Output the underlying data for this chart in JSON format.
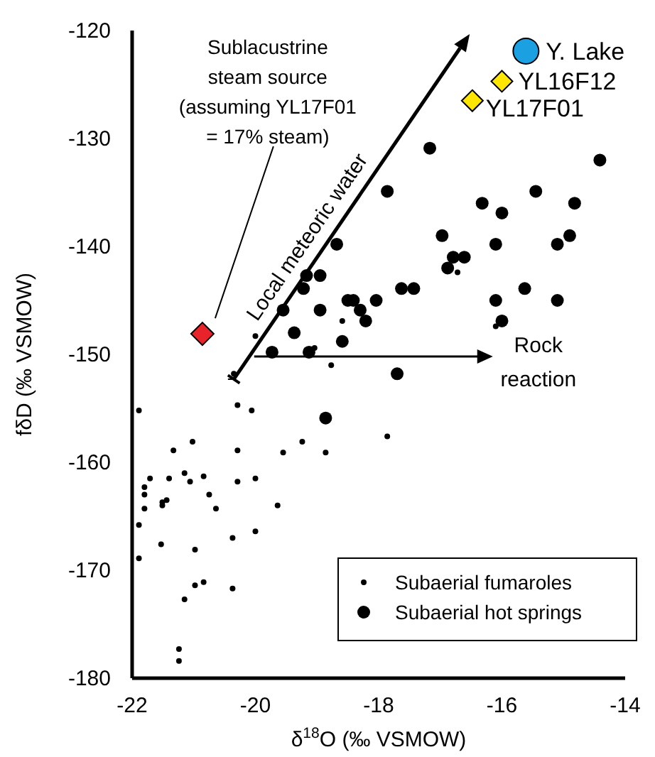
{
  "chart_data": {
    "type": "scatter",
    "xlabel": "δ$^{18}$O (‰ VSMOW)",
    "ylabel": "fδD (‰ VSMOW)",
    "xlim": [
      -22,
      -14
    ],
    "ylim": [
      -180,
      -120
    ],
    "xticks": [
      -22,
      -20,
      -18,
      -16,
      -14
    ],
    "yticks": [
      -180,
      -170,
      -160,
      -150,
      -140,
      -130,
      -120
    ],
    "legend": "bottom right",
    "grid": false,
    "series": [
      {
        "name": "Subaerial fumaroles",
        "color": "#000000",
        "marker": "circle",
        "x": [
          -16.72,
          -16.1,
          -18.59,
          -19.04,
          -18.77,
          -20.0,
          -20.35,
          -20.29,
          -20.06,
          -21.89,
          -19.24,
          -17.86,
          -21.33,
          -21.02,
          -20.29,
          -21.15,
          -20.84,
          -21.06,
          -21.71,
          -21.4,
          -21.8,
          -21.8,
          -20.29,
          -20.0,
          -20.75,
          -21.51,
          -21.51,
          -21.44,
          -21.8,
          -20.64,
          -19.64,
          -21.89,
          -20.37,
          -20.0,
          -21.53,
          -20.98,
          -21.89,
          -20.98,
          -20.84,
          -20.37,
          -21.15,
          -21.24,
          -21.24,
          -18.86,
          -19.55
        ],
        "values": [
          -142.4,
          -147.4,
          -146.9,
          -149.4,
          -151.0,
          -148.3,
          -151.8,
          -154.7,
          -155.2,
          -155.2,
          -158.1,
          -157.6,
          -158.9,
          -158.1,
          -158.9,
          -161.0,
          -161.3,
          -161.8,
          -161.5,
          -161.5,
          -162.3,
          -163.0,
          -161.8,
          -161.5,
          -163.0,
          -163.7,
          -164.0,
          -163.5,
          -164.3,
          -164.3,
          -164.0,
          -165.8,
          -167.0,
          -166.4,
          -167.6,
          -168.1,
          -168.9,
          -171.4,
          -171.1,
          -171.7,
          -172.7,
          -177.3,
          -178.4,
          -159.1,
          -159.1
        ]
      },
      {
        "name": "Subaerial hot springs",
        "color": "#000000",
        "marker": "circle",
        "x": [
          -17.17,
          -14.41,
          -17.86,
          -15.45,
          -16.32,
          -16.0,
          -14.82,
          -16.97,
          -16.1,
          -15.1,
          -14.9,
          -18.68,
          -16.79,
          -16.61,
          -16.88,
          -18.95,
          -19.17,
          -19.22,
          -17.63,
          -17.43,
          -15.63,
          -18.5,
          -18.41,
          -18.04,
          -16.1,
          -15.1,
          -19.55,
          -18.95,
          -18.3,
          -18.21,
          -16.0,
          -19.37,
          -18.59,
          -19.13,
          -19.73,
          -17.7,
          -18.86
        ],
        "values": [
          -130.9,
          -132.0,
          -134.9,
          -134.9,
          -136.0,
          -136.9,
          -136.0,
          -139.0,
          -139.8,
          -139.8,
          -139.0,
          -139.8,
          -141.0,
          -141.0,
          -142.0,
          -142.7,
          -142.7,
          -143.9,
          -143.9,
          -143.9,
          -143.9,
          -145.0,
          -145.0,
          -145.0,
          -145.0,
          -145.0,
          -145.9,
          -145.9,
          -145.9,
          -146.9,
          -146.9,
          -148.0,
          -148.8,
          -149.8,
          -149.8,
          -151.8,
          -155.9
        ]
      },
      {
        "name": "Y. Lake",
        "color": "#1ba1e2",
        "marker": "circle",
        "x": [
          -15.61
        ],
        "values": [
          -121.9
        ]
      },
      {
        "name": "YL16F12",
        "color": "#ffe600",
        "marker": "diamond",
        "x": [
          -16.0
        ],
        "values": [
          -124.7
        ]
      },
      {
        "name": "YL17F01",
        "color": "#ffe600",
        "marker": "diamond",
        "x": [
          -16.48
        ],
        "values": [
          -126.5
        ]
      },
      {
        "color": "#e8232a",
        "marker": "diamond",
        "x": [
          -20.86
        ],
        "values": [
          -148.1
        ]
      }
    ],
    "annotations": [
      "Sublacustrine\nsteam source\n(assuming YL17F01\n= 17% steam)",
      "Local meteoric water",
      "Rock\nreaction"
    ]
  }
}
